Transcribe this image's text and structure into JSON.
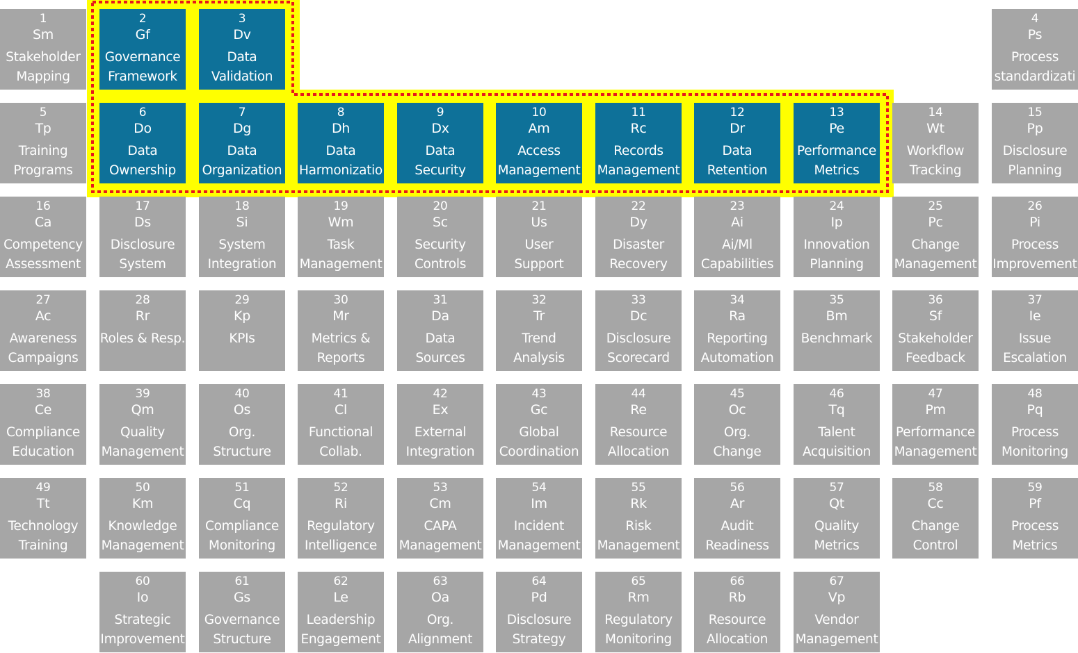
{
  "colors": {
    "tile": "#a6a6a6",
    "highlighted_tile": "#0e7199",
    "highlight_fill": "#ffff00",
    "highlight_outline": "#e8171b",
    "text": "#ffffff"
  },
  "tiles": [
    {
      "num": "1",
      "sym": "Sm",
      "l1": "Stakeholder",
      "l2": "Mapping",
      "hl": false
    },
    {
      "num": "2",
      "sym": "Gf",
      "l1": "Governance",
      "l2": "Framework",
      "hl": true
    },
    {
      "num": "3",
      "sym": "Dv",
      "l1": "Data",
      "l2": "Validation",
      "hl": true
    },
    {
      "num": "4",
      "sym": "Ps",
      "l1": "Process",
      "l2": "standardizati",
      "hl": false
    },
    {
      "num": "5",
      "sym": "Tp",
      "l1": "Training",
      "l2": "Programs",
      "hl": false
    },
    {
      "num": "6",
      "sym": "Do",
      "l1": "Data",
      "l2": "Ownership",
      "hl": true
    },
    {
      "num": "7",
      "sym": "Dg",
      "l1": "Data",
      "l2": "Organization",
      "hl": true
    },
    {
      "num": "8",
      "sym": "Dh",
      "l1": "Data",
      "l2": "Harmonizatio",
      "hl": true
    },
    {
      "num": "9",
      "sym": "Dx",
      "l1": "Data",
      "l2": "Security",
      "hl": true
    },
    {
      "num": "10",
      "sym": "Am",
      "l1": "Access",
      "l2": "Management",
      "hl": true
    },
    {
      "num": "11",
      "sym": "Rc",
      "l1": "Records",
      "l2": "Management",
      "hl": true
    },
    {
      "num": "12",
      "sym": "Dr",
      "l1": "Data",
      "l2": "Retention",
      "hl": true
    },
    {
      "num": "13",
      "sym": "Pe",
      "l1": "Performance",
      "l2": "Metrics",
      "hl": true
    },
    {
      "num": "14",
      "sym": "Wt",
      "l1": "Workflow",
      "l2": "Tracking",
      "hl": false
    },
    {
      "num": "15",
      "sym": "Pp",
      "l1": "Disclosure",
      "l2": "Planning",
      "hl": false
    },
    {
      "num": "16",
      "sym": "Ca",
      "l1": "Competency",
      "l2": "Assessment",
      "hl": false
    },
    {
      "num": "17",
      "sym": "Ds",
      "l1": "Disclosure",
      "l2": "System",
      "hl": false
    },
    {
      "num": "18",
      "sym": "Si",
      "l1": "System",
      "l2": "Integration",
      "hl": false
    },
    {
      "num": "19",
      "sym": "Wm",
      "l1": "Task",
      "l2": "Management",
      "hl": false
    },
    {
      "num": "20",
      "sym": "Sc",
      "l1": "Security",
      "l2": "Controls",
      "hl": false
    },
    {
      "num": "21",
      "sym": "Us",
      "l1": "User",
      "l2": "Support",
      "hl": false
    },
    {
      "num": "22",
      "sym": "Dy",
      "l1": "Disaster",
      "l2": "Recovery",
      "hl": false
    },
    {
      "num": "23",
      "sym": "Ai",
      "l1": "Ai/Ml",
      "l2": "Capabilities",
      "hl": false
    },
    {
      "num": "24",
      "sym": "Ip",
      "l1": "Innovation",
      "l2": "Planning",
      "hl": false
    },
    {
      "num": "25",
      "sym": "Pc",
      "l1": "Change",
      "l2": "Management",
      "hl": false
    },
    {
      "num": "26",
      "sym": "Pi",
      "l1": "Process",
      "l2": "Improvement",
      "hl": false
    },
    {
      "num": "27",
      "sym": "Ac",
      "l1": "Awareness",
      "l2": "Campaigns",
      "hl": false
    },
    {
      "num": "28",
      "sym": "Rr",
      "l1": "Roles & Resp.",
      "l2": "",
      "hl": false
    },
    {
      "num": "29",
      "sym": "Kp",
      "l1": "KPIs",
      "l2": "",
      "hl": false
    },
    {
      "num": "30",
      "sym": "Mr",
      "l1": "Metrics &",
      "l2": "Reports",
      "hl": false
    },
    {
      "num": "31",
      "sym": "Da",
      "l1": "Data",
      "l2": "Sources",
      "hl": false
    },
    {
      "num": "32",
      "sym": "Tr",
      "l1": "Trend",
      "l2": "Analysis",
      "hl": false
    },
    {
      "num": "33",
      "sym": "Dc",
      "l1": "Disclosure",
      "l2": "Scorecard",
      "hl": false
    },
    {
      "num": "34",
      "sym": "Ra",
      "l1": "Reporting",
      "l2": "Automation",
      "hl": false
    },
    {
      "num": "35",
      "sym": "Bm",
      "l1": "Benchmark",
      "l2": "",
      "hl": false
    },
    {
      "num": "36",
      "sym": "Sf",
      "l1": "Stakeholder",
      "l2": "Feedback",
      "hl": false
    },
    {
      "num": "37",
      "sym": "Ie",
      "l1": "Issue",
      "l2": "Escalation",
      "hl": false
    },
    {
      "num": "38",
      "sym": "Ce",
      "l1": "Compliance",
      "l2": "Education",
      "hl": false
    },
    {
      "num": "39",
      "sym": "Qm",
      "l1": "Quality",
      "l2": "Management",
      "hl": false
    },
    {
      "num": "40",
      "sym": "Os",
      "l1": "Org.",
      "l2": "Structure",
      "hl": false
    },
    {
      "num": "41",
      "sym": "Cl",
      "l1": "Functional",
      "l2": "Collab.",
      "hl": false
    },
    {
      "num": "42",
      "sym": "Ex",
      "l1": "External",
      "l2": "Integration",
      "hl": false
    },
    {
      "num": "43",
      "sym": "Gc",
      "l1": "Global",
      "l2": "Coordination",
      "hl": false
    },
    {
      "num": "44",
      "sym": "Re",
      "l1": "Resource",
      "l2": "Allocation",
      "hl": false
    },
    {
      "num": "45",
      "sym": "Oc",
      "l1": "Org.",
      "l2": "Change",
      "hl": false
    },
    {
      "num": "46",
      "sym": "Tq",
      "l1": "Talent",
      "l2": "Acquisition",
      "hl": false
    },
    {
      "num": "47",
      "sym": "Pm",
      "l1": "Performance",
      "l2": "Management",
      "hl": false
    },
    {
      "num": "48",
      "sym": "Pq",
      "l1": "Process",
      "l2": "Monitoring",
      "hl": false
    },
    {
      "num": "49",
      "sym": "Tt",
      "l1": "Technology",
      "l2": "Training",
      "hl": false
    },
    {
      "num": "50",
      "sym": "Km",
      "l1": "Knowledge",
      "l2": "Management",
      "hl": false
    },
    {
      "num": "51",
      "sym": "Cq",
      "l1": "Compliance",
      "l2": "Monitoring",
      "hl": false
    },
    {
      "num": "52",
      "sym": "Ri",
      "l1": "Regulatory",
      "l2": "Intelligence",
      "hl": false
    },
    {
      "num": "53",
      "sym": "Cm",
      "l1": "CAPA",
      "l2": "Management",
      "hl": false
    },
    {
      "num": "54",
      "sym": "Im",
      "l1": "Incident",
      "l2": "Management",
      "hl": false
    },
    {
      "num": "55",
      "sym": "Rk",
      "l1": "Risk",
      "l2": "Management",
      "hl": false
    },
    {
      "num": "56",
      "sym": "Ar",
      "l1": "Audit",
      "l2": "Readiness",
      "hl": false
    },
    {
      "num": "57",
      "sym": "Qt",
      "l1": "Quality",
      "l2": "Metrics",
      "hl": false
    },
    {
      "num": "58",
      "sym": "Cc",
      "l1": "Change",
      "l2": "Control",
      "hl": false
    },
    {
      "num": "59",
      "sym": "Pf",
      "l1": "Process",
      "l2": "Metrics",
      "hl": false
    },
    {
      "num": "60",
      "sym": "Io",
      "l1": "Strategic",
      "l2": "Improvement",
      "hl": false
    },
    {
      "num": "61",
      "sym": "Gs",
      "l1": "Governance",
      "l2": "Structure",
      "hl": false
    },
    {
      "num": "62",
      "sym": "Le",
      "l1": "Leadership",
      "l2": "Engagement",
      "hl": false
    },
    {
      "num": "63",
      "sym": "Oa",
      "l1": "Org.",
      "l2": "Alignment",
      "hl": false
    },
    {
      "num": "64",
      "sym": "Pd",
      "l1": "Disclosure",
      "l2": "Strategy",
      "hl": false
    },
    {
      "num": "65",
      "sym": "Rm",
      "l1": "Regulatory",
      "l2": "Monitoring",
      "hl": false
    },
    {
      "num": "66",
      "sym": "Rb",
      "l1": "Resource",
      "l2": "Allocation",
      "hl": false
    },
    {
      "num": "67",
      "sym": "Vp",
      "l1": "Vendor",
      "l2": "Management",
      "hl": false
    }
  ]
}
